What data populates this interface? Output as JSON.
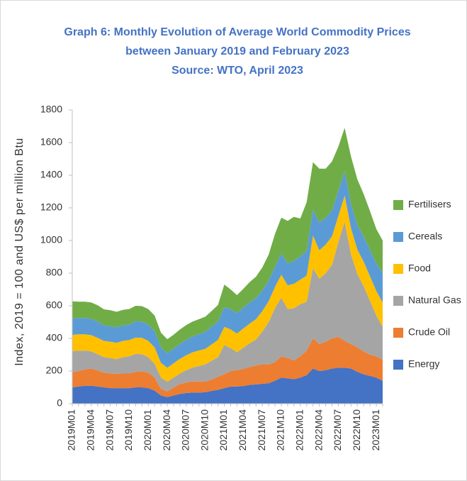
{
  "chart_data": {
    "type": "stacked_area",
    "title": [
      "Graph 6: Monthly Evolution of Average World Commodity Prices",
      "between January 2019 and February 2023",
      "Source: WTO, April 2023"
    ],
    "y_label": "Index, 2019 = 100 and US$ per million Btu",
    "categories": [
      "2019M01",
      null,
      null,
      "2019M04",
      null,
      null,
      "2019M07",
      null,
      null,
      "2019M10",
      null,
      null,
      "2020M01",
      null,
      null,
      "2020M04",
      null,
      null,
      "2020M07",
      null,
      null,
      "2020M10",
      null,
      null,
      "2021M01",
      null,
      null,
      "2021M04",
      null,
      null,
      "2021M07",
      null,
      null,
      "2021M10",
      null,
      null,
      "2022M01",
      null,
      null,
      "2022M04",
      null,
      null,
      "2022M07",
      null,
      null,
      "2022M10",
      null,
      null,
      "2023M01",
      null
    ],
    "ylim": [
      0,
      1800
    ],
    "yticks": [
      0,
      200,
      400,
      600,
      800,
      1000,
      1200,
      1400,
      1600,
      1800
    ],
    "series": [
      {
        "name": "Energy",
        "color": "#4472c4",
        "values": [
          100,
          105,
          110,
          110,
          105,
          100,
          95,
          95,
          95,
          95,
          100,
          100,
          95,
          80,
          50,
          40,
          50,
          60,
          65,
          68,
          68,
          70,
          78,
          85,
          95,
          105,
          105,
          108,
          115,
          118,
          122,
          125,
          140,
          160,
          155,
          150,
          160,
          175,
          215,
          200,
          205,
          215,
          220,
          220,
          215,
          195,
          180,
          170,
          160,
          140
        ]
      },
      {
        "name": "Crude Oil",
        "color": "#ed7d31",
        "values": [
          92,
          95,
          100,
          105,
          98,
          90,
          90,
          88,
          90,
          90,
          95,
          98,
          95,
          80,
          40,
          35,
          50,
          60,
          65,
          68,
          68,
          65,
          70,
          80,
          85,
          95,
          100,
          105,
          110,
          115,
          120,
          115,
          115,
          130,
          125,
          115,
          130,
          150,
          185,
          165,
          175,
          185,
          190,
          165,
          150,
          150,
          140,
          130,
          130,
          130
        ]
      },
      {
        "name": "Natural Gas",
        "color": "#a5a5a5",
        "values": [
          130,
          125,
          115,
          105,
          100,
          95,
          95,
          90,
          100,
          105,
          110,
          105,
          95,
          85,
          70,
          60,
          60,
          65,
          75,
          85,
          95,
          105,
          115,
          120,
          180,
          140,
          110,
          130,
          145,
          160,
          200,
          260,
          330,
          360,
          300,
          320,
          320,
          300,
          430,
          400,
          420,
          450,
          580,
          730,
          550,
          450,
          400,
          330,
          250,
          200
        ]
      },
      {
        "name": "Food",
        "color": "#ffc000",
        "values": [
          100,
          100,
          100,
          100,
          100,
          100,
          100,
          100,
          100,
          100,
          100,
          100,
          100,
          100,
          90,
          85,
          88,
          90,
          92,
          94,
          95,
          96,
          100,
          105,
          110,
          115,
          115,
          118,
          120,
          125,
          125,
          128,
          130,
          140,
          145,
          150,
          150,
          160,
          200,
          175,
          175,
          175,
          160,
          160,
          160,
          150,
          150,
          150,
          150,
          150
        ]
      },
      {
        "name": "Cereals",
        "color": "#5b9bd5",
        "values": [
          100,
          100,
          100,
          100,
          100,
          95,
          95,
          95,
          95,
          95,
          100,
          100,
          100,
          100,
          95,
          90,
          90,
          92,
          95,
          98,
          100,
          105,
          110,
          115,
          120,
          125,
          125,
          128,
          130,
          130,
          128,
          125,
          125,
          130,
          135,
          140,
          145,
          150,
          160,
          170,
          165,
          160,
          155,
          150,
          150,
          150,
          155,
          160,
          170,
          180
        ]
      },
      {
        "name": "Fertilisers",
        "color": "#70ad47",
        "values": [
          105,
          100,
          100,
          100,
          100,
          98,
          98,
          95,
          95,
          95,
          95,
          95,
          95,
          95,
          90,
          85,
          85,
          88,
          90,
          90,
          92,
          92,
          95,
          100,
          140,
          120,
          110,
          115,
          125,
          130,
          140,
          160,
          200,
          220,
          260,
          270,
          230,
          300,
          290,
          330,
          300,
          300,
          270,
          265,
          290,
          280,
          260,
          240,
          210,
          200
        ]
      }
    ]
  }
}
